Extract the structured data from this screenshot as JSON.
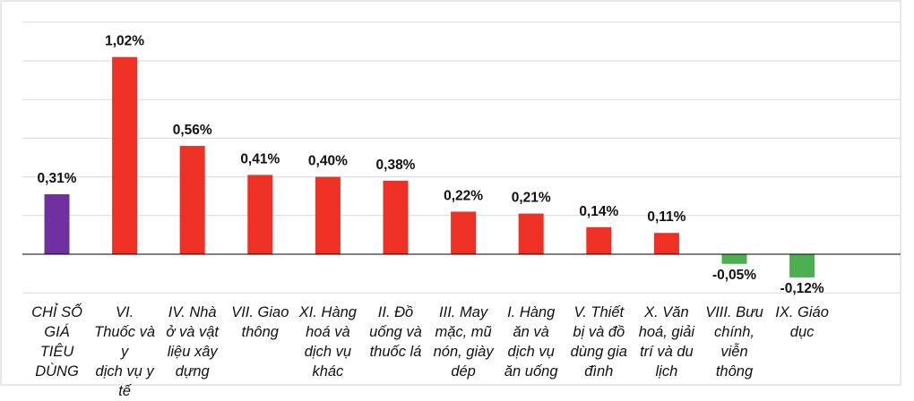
{
  "chart_data": {
    "type": "bar",
    "categories": [
      "CHỈ SỐ GIÁ TIÊU DÙNG",
      "VI. Thuốc và dịch vụ y tế",
      "IV. Nhà ở và vật liệu xây dựng",
      "VII. Giao thông",
      "XI. Hàng hoá và dịch vụ khác",
      "II. Đồ uống và thuốc lá",
      "III. May mặc, mũ nón, giày dép",
      "I. Hàng ăn và dịch vụ ăn uống",
      "V. Thiết bị và đồ dùng gia đình",
      "X. Văn hoá, giải trí và du lịch",
      "VIII. Bưu chính, viễn thông",
      "IX. Giáo dục"
    ],
    "category_lines": [
      [
        "CHỈ SỐ",
        "GIÁ",
        "TIÊU",
        "DÙNG"
      ],
      [
        "VI.",
        "Thuốc và y",
        "dịch vụ y",
        "tế"
      ],
      [
        "IV. Nhà",
        "ở và vật",
        "liệu xây",
        "dựng"
      ],
      [
        "VII. Giao",
        "thông"
      ],
      [
        "XI. Hàng",
        "hoá và",
        "dịch vụ",
        "khác"
      ],
      [
        "II. Đồ",
        "uống và",
        "thuốc lá"
      ],
      [
        "III. May",
        "mặc, mũ",
        "nón, giày",
        "dép"
      ],
      [
        "I. Hàng",
        "ăn và",
        "dịch vụ",
        "ăn uống"
      ],
      [
        "V. Thiết",
        "bị và đồ",
        "dùng gia",
        "đình"
      ],
      [
        "X. Văn",
        "hoá, giải",
        "trí và du",
        "lịch"
      ],
      [
        "VIII. Bưu",
        "chính,",
        "viễn",
        "thông"
      ],
      [
        "IX. Giáo",
        "dục"
      ]
    ],
    "values": [
      0.31,
      1.02,
      0.56,
      0.41,
      0.4,
      0.38,
      0.22,
      0.21,
      0.14,
      0.11,
      -0.05,
      -0.12
    ],
    "value_labels": [
      "0,31%",
      "1,02%",
      "0,56%",
      "0,41%",
      "0,40%",
      "0,38%",
      "0,22%",
      "0,21%",
      "0,14%",
      "0,11%",
      "-0,05%",
      "-0,12%"
    ],
    "bar_colors": [
      "#7030a0",
      "#ee3124",
      "#ee3124",
      "#ee3124",
      "#ee3124",
      "#ee3124",
      "#ee3124",
      "#ee3124",
      "#ee3124",
      "#ee3124",
      "#4caf50",
      "#4caf50"
    ],
    "ylim": [
      -0.2,
      1.15
    ],
    "grid": true,
    "title": "",
    "xlabel": "",
    "ylabel": ""
  },
  "colors": {
    "grid": "#d9d9d9",
    "axis": "#000000",
    "frame": "#d0d0d0"
  }
}
